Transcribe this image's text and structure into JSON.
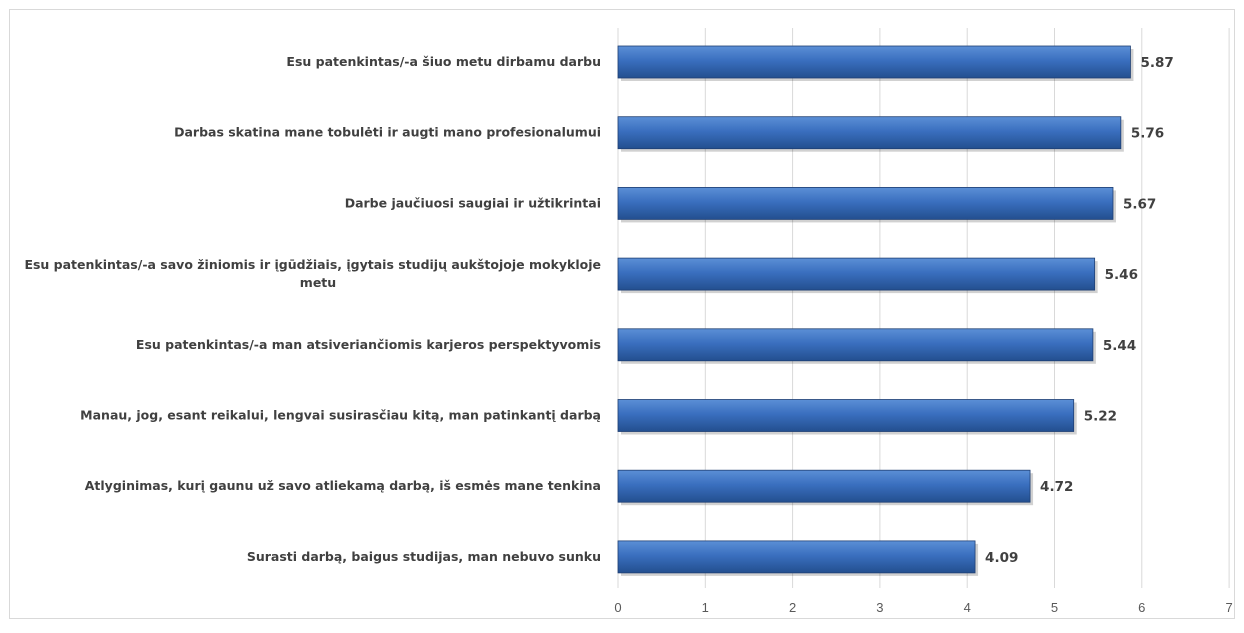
{
  "chart_data": {
    "type": "bar",
    "orientation": "horizontal",
    "title": "",
    "xlabel": "",
    "ylabel": "",
    "categories": [
      "Esu patenkintas/-a šiuo metu dirbamu darbu",
      "Darbas skatina mane tobulėti ir augti mano profesionalumui",
      "Darbe jaučiuosi saugiai ir užtikrintai",
      "Esu patenkintas/-a savo žiniomis ir įgūdžiais, įgytais studijų aukštojoje mokykloje metu",
      "Esu patenkintas/-a man atsiveriančiomis karjeros perspektyvomis",
      "Manau, jog, esant reikalui, lengvai susirasčiau kitą, man patinkantį darbą",
      "Atlyginimas, kurį gaunu už savo atliekamą darbą, iš esmės mane tenkina",
      "Surasti darbą, baigus studijas, man nebuvo sunku"
    ],
    "category_label_lines": [
      [
        "Esu patenkintas/-a šiuo metu dirbamu darbu"
      ],
      [
        "Darbas skatina mane tobulėti ir augti mano profesionalumui"
      ],
      [
        "Darbe jaučiuosi saugiai ir užtikrintai"
      ],
      [
        "Esu patenkintas/-a savo žiniomis ir įgūdžiais, įgytais studijų aukštojoje mokykloje",
        "metu"
      ],
      [
        "Esu patenkintas/-a man atsiveriančiomis karjeros perspektyvomis"
      ],
      [
        "Manau, jog, esant reikalui, lengvai susirasčiau kitą, man patinkantį darbą"
      ],
      [
        "Atlyginimas, kurį gaunu už savo atliekamą darbą, iš esmės mane tenkina"
      ],
      [
        "Surasti darbą, baigus studijas, man nebuvo sunku"
      ]
    ],
    "values": [
      5.87,
      5.76,
      5.67,
      5.46,
      5.44,
      5.22,
      4.72,
      4.09
    ],
    "value_labels": [
      "5.87",
      "5.76",
      "5.67",
      "5.46",
      "5.44",
      "5.22",
      "4.72",
      "4.09"
    ],
    "xlim": [
      0,
      7
    ],
    "x_ticks": [
      0,
      1,
      2,
      3,
      4,
      5,
      6,
      7
    ],
    "x_tick_labels": [
      "0",
      "1",
      "2",
      "3",
      "4",
      "5",
      "6",
      "7"
    ],
    "grid": "vertical",
    "legend": "none",
    "colors": {
      "bar_light": "#5b8fd6",
      "bar_mid": "#3a6fbf",
      "bar_dark": "#234f8f",
      "bar_edge": "#1f3f73",
      "gridline": "#d9d9d9",
      "frame": "#d9d9d9",
      "label_text": "#404040",
      "tick_text": "#595959"
    }
  }
}
